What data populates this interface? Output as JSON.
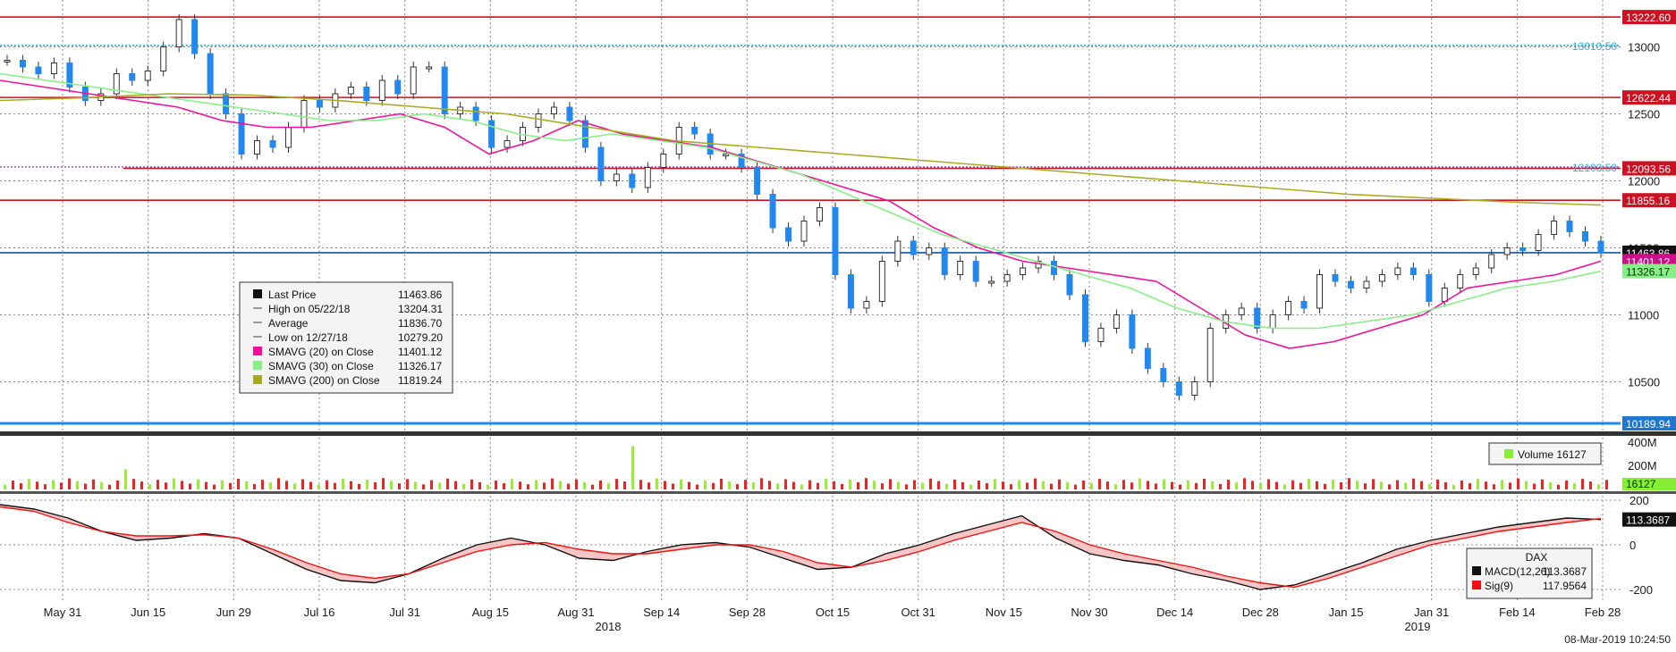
{
  "chart_data": [
    {
      "type": "line",
      "subtype": "candlestick",
      "title": "",
      "instrument": "DAX",
      "ylim": [
        10150,
        13350
      ],
      "yticks": [
        10500,
        11000,
        11500,
        12000,
        12500,
        13000
      ],
      "xticks": [
        "May 31",
        "Jun 15",
        "Jun 29",
        "Jul 16",
        "Jul 31",
        "Aug 15",
        "Aug 31",
        "Sep 14",
        "Sep 28",
        "Oct 15",
        "Oct 31",
        "Nov 15",
        "Nov 30",
        "Dec 14",
        "Dec 28",
        "Jan 15",
        "Jan 31",
        "Feb 14",
        "Feb 28"
      ],
      "year_labels": [
        "2018",
        "2019"
      ],
      "grid": true,
      "series": [
        {
          "name": "Last Price",
          "values": [
            12900,
            12850,
            12800,
            12880,
            12700,
            12600,
            12650,
            12800,
            12750,
            12820,
            13000,
            13204,
            12950,
            12650,
            12500,
            12200,
            12300,
            12250,
            12400,
            12600,
            12550,
            12650,
            12700,
            12600,
            12750,
            12650,
            12850,
            12850,
            12500,
            12550,
            12450,
            12250,
            12300,
            12400,
            12500,
            12550,
            12450,
            12250,
            12000,
            12050,
            11950,
            12100,
            12200,
            12400,
            12350,
            12200,
            12200,
            12100,
            11900,
            11650,
            11550,
            11700,
            11800,
            11300,
            11050,
            11100,
            11400,
            11550,
            11450,
            11500,
            11300,
            11400,
            11250,
            11250,
            11300,
            11350,
            11400,
            11300,
            11150,
            10800,
            10900,
            11000,
            10750,
            10600,
            10500,
            10400,
            10500,
            10900,
            11000,
            11050,
            10900,
            11000,
            11100,
            11050,
            11300,
            11250,
            11200,
            11250,
            11300,
            11350,
            11300,
            11100,
            11200,
            11300,
            11350,
            11450,
            11500,
            11480,
            11600,
            11700,
            11620,
            11550,
            11463.86
          ]
        },
        {
          "name": "SMAVG (20) on Close",
          "values": [
            12750,
            12700,
            12650,
            12600,
            12550,
            12450,
            12400,
            12400,
            12450,
            12500,
            12400,
            12200,
            12300,
            12450,
            12350,
            12300,
            12250,
            12150,
            12050,
            11950,
            11850,
            11650,
            11500,
            11400,
            11350,
            11300,
            11250,
            11050,
            10850,
            10750,
            10800,
            10900,
            11000,
            11200,
            11250,
            11300,
            11401
          ]
        },
        {
          "name": "SMAVG (30) on Close",
          "values": [
            12800,
            12750,
            12700,
            12650,
            12600,
            12550,
            12500,
            12450,
            12450,
            12500,
            12450,
            12350,
            12300,
            12350,
            12300,
            12250,
            12150,
            12050,
            11900,
            11750,
            11600,
            11500,
            11400,
            11300,
            11200,
            11050,
            10950,
            10900,
            10900,
            10950,
            11000,
            11100,
            11200,
            11250,
            11326
          ]
        },
        {
          "name": "SMAVG (200) on Close",
          "values": [
            12600,
            12620,
            12650,
            12640,
            12600,
            12550,
            12500,
            12400,
            12300,
            12250,
            12200,
            12150,
            12100,
            12050,
            12000,
            11950,
            11900,
            11870,
            11840,
            11819
          ]
        }
      ],
      "price_lines": [
        13222.6,
        13010.5,
        12622.44,
        12103.5,
        12093.56,
        11855.16,
        11463.86,
        10189.94
      ],
      "right_labels": [
        {
          "text": "13222.60",
          "bg": "#cc1122",
          "fg": "#ffffff",
          "value": 13222.6
        },
        {
          "text": "13010.50",
          "bg": "none",
          "fg": "#33aadd",
          "value": 13010.5
        },
        {
          "text": "12622.44",
          "bg": "#cc1122",
          "fg": "#ffffff",
          "value": 12622.44
        },
        {
          "text": "12103.50",
          "bg": "none",
          "fg": "#33aadd",
          "value": 12103.5
        },
        {
          "text": "12093.56",
          "bg": "#cc1122",
          "fg": "#ffffff",
          "value": 12093.56
        },
        {
          "text": "11855.16",
          "bg": "#cc1122",
          "fg": "#ffffff",
          "value": 11855.16
        },
        {
          "text": "11463.86",
          "bg": "#111111",
          "fg": "#ffffff",
          "value": 11463.86
        },
        {
          "text": "11401.12",
          "bg": "#cc1188",
          "fg": "#ffffff",
          "value": 11401.12
        },
        {
          "text": "11326.17",
          "bg": "#88ee88",
          "fg": "#003300",
          "value": 11326.17
        },
        {
          "text": "10189.94",
          "bg": "#2277cc",
          "fg": "#ffffff",
          "value": 10189.94
        }
      ],
      "legend": {
        "placement": "middle-left",
        "rows": [
          {
            "label": "Last Price",
            "value": "11463.86",
            "swatch": "#111111"
          },
          {
            "label": "High on 05/22/18",
            "value": "13204.31",
            "swatch": "none"
          },
          {
            "label": "Average",
            "value": "11836.70",
            "swatch": "none"
          },
          {
            "label": "Low on 12/27/18",
            "value": "10279.20",
            "swatch": "none"
          },
          {
            "label": "SMAVG (20)  on Close",
            "value": "11401.12",
            "swatch": "#ee1199"
          },
          {
            "label": "SMAVG (30)  on Close",
            "value": "11326.17",
            "swatch": "#88ee88"
          },
          {
            "label": "SMAVG (200)  on Close",
            "value": "11819.24",
            "swatch": "#aaaa22"
          }
        ]
      }
    },
    {
      "type": "bar",
      "title": "Volume",
      "ylim": [
        0,
        450
      ],
      "yticks_labels": [
        "400M",
        "200M"
      ],
      "last": "16127",
      "legend": {
        "label": "Volume",
        "value": "16127"
      }
    },
    {
      "type": "area",
      "title": "MACD",
      "ylim": [
        -260,
        220
      ],
      "yticks": [
        200,
        0,
        -200
      ],
      "legend": {
        "title": "DAX",
        "rows": [
          {
            "label": "MACD(12,26)",
            "value": "113.3687",
            "swatch": "#111111"
          },
          {
            "label": "Sig(9)",
            "value": "117.9564",
            "swatch": "#ee1111"
          }
        ]
      },
      "series": [
        {
          "name": "MACD(12,26)",
          "values": [
            180,
            160,
            120,
            60,
            20,
            30,
            50,
            30,
            -40,
            -110,
            -160,
            -170,
            -130,
            -60,
            0,
            30,
            0,
            -60,
            -70,
            -30,
            0,
            10,
            -10,
            -60,
            -110,
            -100,
            -40,
            0,
            50,
            90,
            130,
            30,
            -40,
            -70,
            -90,
            -130,
            -160,
            -200,
            -180,
            -130,
            -80,
            -20,
            20,
            50,
            80,
            100,
            120,
            113.3687
          ]
        },
        {
          "name": "Sig(9)",
          "values": [
            170,
            150,
            100,
            60,
            40,
            40,
            45,
            30,
            -20,
            -80,
            -130,
            -150,
            -130,
            -80,
            -30,
            0,
            10,
            -20,
            -40,
            -40,
            -20,
            0,
            0,
            -30,
            -80,
            -100,
            -70,
            -30,
            20,
            60,
            100,
            60,
            0,
            -40,
            -70,
            -100,
            -140,
            -170,
            -190,
            -150,
            -100,
            -50,
            0,
            30,
            60,
            80,
            100,
            117.9564
          ]
        }
      ]
    }
  ],
  "footer": {
    "timestamp": "08-Mar-2019 10:24:50"
  }
}
